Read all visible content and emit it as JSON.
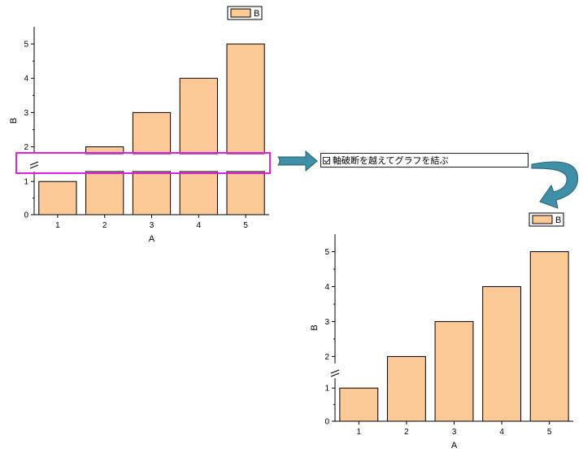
{
  "colors": {
    "bar_fill": "#FDC997",
    "bar_stroke": "#000000",
    "highlight": "#E020E0",
    "arrow": "#3F8FA6"
  },
  "option": {
    "label": "軸破断を越えてグラフを結ぶ",
    "checked": true
  },
  "chart_data": [
    {
      "type": "bar",
      "categories": [
        "1",
        "2",
        "3",
        "4",
        "5"
      ],
      "series": [
        {
          "name": "B",
          "values": [
            1,
            2,
            3,
            4,
            5
          ]
        }
      ],
      "xlabel": "A",
      "ylabel": "B",
      "ylim": [
        0,
        5.5
      ],
      "yticks": [
        "0",
        "1",
        "2",
        "3",
        "4",
        "5"
      ],
      "axis_break": [
        1.3,
        1.8
      ],
      "bars_connected_across_break": false,
      "legend": "top-right"
    },
    {
      "type": "bar",
      "categories": [
        "1",
        "2",
        "3",
        "4",
        "5"
      ],
      "series": [
        {
          "name": "B",
          "values": [
            1,
            2,
            3,
            4,
            5
          ]
        }
      ],
      "xlabel": "A",
      "ylabel": "B",
      "ylim": [
        0,
        5.5
      ],
      "yticks": [
        "0",
        "1",
        "2",
        "3",
        "4",
        "5"
      ],
      "axis_break": [
        1.3,
        1.8
      ],
      "bars_connected_across_break": true,
      "legend": "top-right"
    }
  ]
}
